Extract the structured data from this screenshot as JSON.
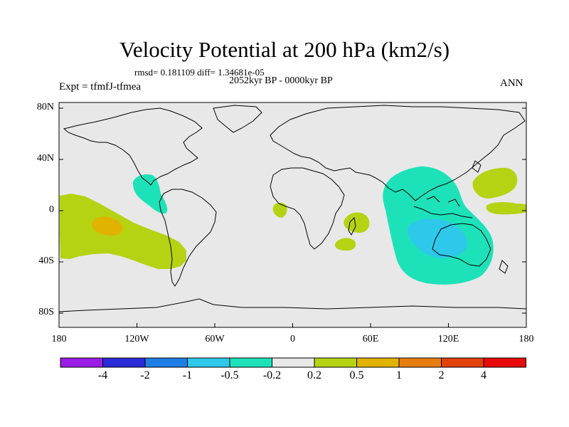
{
  "header": {
    "title": "Velocity Potential at 200 hPa (km2/s)",
    "stats": "rmsd= 0.181109 diff= 1.34681e-05",
    "period": "2052kyr BP - 0000kyr BP",
    "experiment": "Expt = tfmfJ-tfmea",
    "season": "ANN"
  },
  "axes": {
    "lat_labels": [
      "80N",
      "40N",
      "0",
      "40S",
      "80S"
    ],
    "lon_labels": [
      "180",
      "120W",
      "60W",
      "0",
      "60E",
      "120E",
      "180"
    ]
  },
  "colorbar": {
    "colors": [
      "#9a1ee6",
      "#2b2bd8",
      "#1f7ee6",
      "#2ec8ea",
      "#1de2b9",
      "#e8e8e8",
      "#b5d312",
      "#e2b200",
      "#e77d0f",
      "#e3410a",
      "#e80a0a"
    ],
    "labels": [
      "-4",
      "-2",
      "-1",
      "-0.5",
      "-0.2",
      "0.2",
      "0.5",
      "1",
      "2",
      "4"
    ]
  },
  "colors": {
    "background": "#e8e8e8",
    "teal": "#1de2b9",
    "cyan": "#2ec8ea",
    "yellow_green": "#b5d312",
    "orange": "#e2b200"
  }
}
